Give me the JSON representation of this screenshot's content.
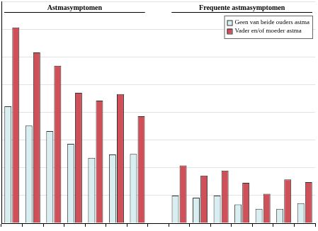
{
  "chart_data": {
    "type": "bar",
    "categories": [
      null,
      null,
      null,
      null,
      null,
      null,
      null,
      null,
      null,
      null,
      null,
      null,
      null,
      null,
      null
    ],
    "series": [
      {
        "name": "Geen van beide ouders astma",
        "color": "#d9eef0",
        "values": [
          21.1,
          17.6,
          16.6,
          14.3,
          11.8,
          12.4,
          12.5,
          null,
          5.0,
          4.6,
          5.0,
          3.4,
          2.6,
          2.6,
          3.6
        ]
      },
      {
        "name": "Vader en/of moeder astma",
        "color": "#d0505a",
        "values": [
          35.3,
          30.8,
          28.4,
          23.5,
          22.1,
          23.3,
          19.3,
          null,
          10.4,
          8.6,
          9.5,
          7.3,
          5.3,
          7.9,
          7.4
        ]
      }
    ],
    "ylim": [
      0,
      40
    ],
    "yticks": [
      0,
      5,
      10,
      15,
      20,
      25,
      30,
      35,
      40
    ],
    "grid": true,
    "legend": "upper right",
    "tick_labels": false,
    "annotations": [
      {
        "text": "Astmasymptomen",
        "from": 0,
        "to": 6
      },
      {
        "text": "Frequente astmasymptomen",
        "from": 8,
        "to": 14
      }
    ]
  }
}
